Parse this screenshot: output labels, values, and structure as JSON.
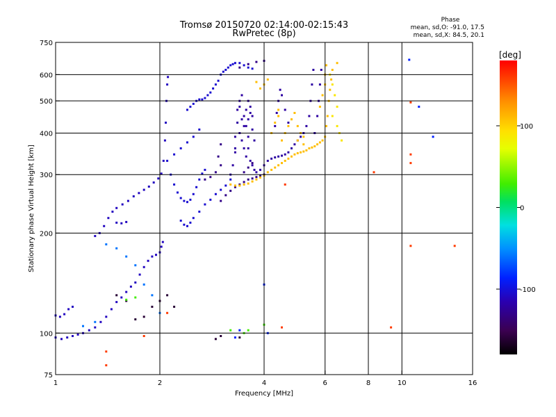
{
  "chart_data": {
    "type": "scatter",
    "title": "Tromsø 20150720 02:14:00-02:15:43",
    "subtitle": "RwPretec (8p)",
    "xlabel": "Frequency [MHz]",
    "ylabel": "Stationary phase Virtual Height [km]",
    "x_scale": "log",
    "y_scale": "log",
    "xlim": [
      1,
      16
    ],
    "ylim": [
      75,
      750
    ],
    "x_ticks": [
      1,
      2,
      4,
      6,
      8,
      10,
      16
    ],
    "y_ticks": [
      75,
      100,
      200,
      300,
      400,
      500,
      600,
      750
    ],
    "x_gridlines": [
      2,
      4,
      6,
      8,
      10
    ],
    "y_gridlines": [
      100,
      200,
      300,
      400,
      500,
      600
    ],
    "grid": true,
    "stats": {
      "heading": "Phase",
      "o_line": "mean, sd,O: -91.0, 17.5",
      "x_line": "mean, sd,X:  84.5, 20.1"
    },
    "colorbar": {
      "label": "[deg]",
      "range": [
        -180,
        180
      ],
      "ticks": [
        100,
        0,
        -100
      ],
      "tick_labels": [
        "100",
        "0",
        "-100"
      ]
    },
    "series": [
      {
        "phase": -110,
        "points": [
          [
            1.0,
            113
          ],
          [
            1.03,
            112
          ],
          [
            1.06,
            114
          ],
          [
            1.09,
            118
          ],
          [
            1.12,
            120
          ],
          [
            1.0,
            97
          ],
          [
            1.04,
            96
          ],
          [
            1.08,
            97
          ],
          [
            1.12,
            98
          ],
          [
            1.16,
            99
          ],
          [
            1.2,
            100
          ],
          [
            1.25,
            102
          ],
          [
            1.3,
            104
          ],
          [
            1.35,
            108
          ],
          [
            1.4,
            112
          ],
          [
            1.45,
            118
          ],
          [
            1.5,
            124
          ],
          [
            1.55,
            128
          ],
          [
            1.6,
            133
          ],
          [
            1.65,
            138
          ],
          [
            1.7,
            142
          ],
          [
            1.75,
            150
          ],
          [
            1.8,
            158
          ],
          [
            1.85,
            165
          ],
          [
            1.9,
            170
          ],
          [
            1.95,
            172
          ],
          [
            2.0,
            175
          ],
          [
            2.02,
            182
          ],
          [
            2.04,
            188
          ],
          [
            1.3,
            196
          ],
          [
            1.34,
            200
          ],
          [
            1.38,
            210
          ],
          [
            1.42,
            222
          ],
          [
            1.46,
            232
          ],
          [
            1.5,
            238
          ],
          [
            1.56,
            244
          ],
          [
            1.62,
            250
          ],
          [
            1.68,
            258
          ],
          [
            1.74,
            264
          ],
          [
            1.8,
            270
          ],
          [
            1.86,
            276
          ],
          [
            1.92,
            284
          ],
          [
            1.98,
            292
          ],
          [
            2.02,
            302
          ],
          [
            2.05,
            330
          ],
          [
            2.07,
            380
          ],
          [
            2.08,
            430
          ],
          [
            2.09,
            500
          ],
          [
            2.1,
            560
          ],
          [
            2.11,
            590
          ],
          [
            1.5,
            215
          ],
          [
            1.55,
            214
          ],
          [
            1.6,
            216
          ]
        ]
      },
      {
        "phase": -105,
        "points": [
          [
            2.1,
            330
          ],
          [
            2.15,
            300
          ],
          [
            2.2,
            280
          ],
          [
            2.25,
            265
          ],
          [
            2.3,
            255
          ],
          [
            2.35,
            250
          ],
          [
            2.4,
            248
          ],
          [
            2.45,
            252
          ],
          [
            2.5,
            262
          ],
          [
            2.55,
            275
          ],
          [
            2.6,
            290
          ],
          [
            2.65,
            302
          ],
          [
            2.7,
            310
          ],
          [
            2.3,
            218
          ],
          [
            2.35,
            212
          ],
          [
            2.4,
            210
          ],
          [
            2.45,
            215
          ],
          [
            2.5,
            222
          ],
          [
            2.6,
            232
          ],
          [
            2.7,
            244
          ],
          [
            2.8,
            252
          ],
          [
            2.9,
            262
          ],
          [
            3.0,
            270
          ],
          [
            3.1,
            278
          ],
          [
            3.2,
            290
          ],
          [
            2.2,
            345
          ],
          [
            2.3,
            360
          ],
          [
            2.4,
            375
          ],
          [
            2.5,
            390
          ],
          [
            2.6,
            410
          ],
          [
            2.4,
            470
          ],
          [
            2.45,
            480
          ],
          [
            2.5,
            490
          ],
          [
            2.55,
            500
          ],
          [
            2.6,
            505
          ],
          [
            2.65,
            505
          ],
          [
            2.7,
            510
          ],
          [
            2.75,
            520
          ],
          [
            2.8,
            530
          ],
          [
            2.85,
            545
          ],
          [
            2.9,
            560
          ],
          [
            2.95,
            575
          ],
          [
            3.0,
            600
          ],
          [
            3.05,
            612
          ],
          [
            3.1,
            620
          ],
          [
            3.15,
            630
          ],
          [
            3.2,
            640
          ],
          [
            3.25,
            645
          ],
          [
            3.3,
            650
          ],
          [
            3.4,
            650
          ],
          [
            3.5,
            640
          ],
          [
            3.6,
            630
          ],
          [
            3.7,
            625
          ]
        ]
      },
      {
        "phase": -120,
        "points": [
          [
            3.2,
            300
          ],
          [
            3.25,
            320
          ],
          [
            3.3,
            350
          ],
          [
            3.3,
            390
          ],
          [
            3.35,
            430
          ],
          [
            3.35,
            470
          ],
          [
            3.4,
            500
          ],
          [
            3.45,
            520
          ],
          [
            3.4,
            400
          ],
          [
            3.45,
            380
          ],
          [
            3.5,
            360
          ],
          [
            3.55,
            340
          ],
          [
            3.5,
            450
          ],
          [
            3.55,
            420
          ],
          [
            3.6,
            390
          ],
          [
            3.6,
            440
          ],
          [
            3.65,
            460
          ],
          [
            3.3,
            360
          ],
          [
            3.5,
            420
          ],
          [
            3.55,
            470
          ],
          [
            3.6,
            500
          ],
          [
            3.65,
            480
          ],
          [
            3.7,
            450
          ],
          [
            3.7,
            410
          ],
          [
            3.75,
            380
          ],
          [
            3.4,
            480
          ],
          [
            3.45,
            440
          ],
          [
            3.6,
            360
          ],
          [
            3.65,
            330
          ],
          [
            3.7,
            320
          ],
          [
            3.75,
            310
          ],
          [
            3.8,
            305
          ],
          [
            3.9,
            310
          ],
          [
            4.0,
            320
          ],
          [
            4.1,
            330
          ],
          [
            4.2,
            335
          ],
          [
            4.3,
            338
          ],
          [
            4.4,
            340
          ],
          [
            4.5,
            342
          ],
          [
            4.6,
            345
          ],
          [
            4.7,
            350
          ],
          [
            4.8,
            360
          ],
          [
            4.9,
            370
          ],
          [
            5.0,
            380
          ],
          [
            5.1,
            390
          ],
          [
            5.2,
            400
          ],
          [
            5.3,
            420
          ],
          [
            5.4,
            450
          ],
          [
            5.45,
            500
          ],
          [
            5.5,
            560
          ],
          [
            5.55,
            620
          ],
          [
            4.3,
            420
          ],
          [
            4.35,
            460
          ],
          [
            4.4,
            500
          ],
          [
            4.45,
            540
          ],
          [
            4.5,
            520
          ],
          [
            4.6,
            470
          ],
          [
            4.7,
            430
          ],
          [
            5.6,
            400
          ],
          [
            5.7,
            450
          ],
          [
            5.75,
            500
          ],
          [
            5.8,
            560
          ],
          [
            5.85,
            620
          ]
        ]
      },
      {
        "phase": -130,
        "points": [
          [
            3.0,
            250
          ],
          [
            3.1,
            260
          ],
          [
            3.2,
            268
          ],
          [
            3.3,
            275
          ],
          [
            3.4,
            280
          ],
          [
            3.5,
            285
          ],
          [
            3.6,
            290
          ],
          [
            3.7,
            292
          ],
          [
            3.8,
            295
          ],
          [
            3.9,
            298
          ],
          [
            4.0,
            300
          ],
          [
            3.5,
            305
          ],
          [
            3.6,
            315
          ],
          [
            3.7,
            325
          ],
          [
            3.0,
            320
          ],
          [
            2.95,
            340
          ],
          [
            3.0,
            370
          ],
          [
            2.9,
            305
          ],
          [
            2.8,
            295
          ],
          [
            2.7,
            290
          ],
          [
            3.4,
            630
          ],
          [
            3.6,
            645
          ],
          [
            3.8,
            655
          ],
          [
            4.0,
            660
          ]
        ]
      },
      {
        "phase": 110,
        "points": [
          [
            3.2,
            280
          ],
          [
            3.3,
            278
          ],
          [
            3.4,
            278
          ],
          [
            3.5,
            280
          ],
          [
            3.6,
            282
          ],
          [
            3.7,
            286
          ],
          [
            3.8,
            290
          ],
          [
            3.9,
            294
          ],
          [
            4.0,
            298
          ],
          [
            4.1,
            305
          ],
          [
            4.2,
            310
          ],
          [
            4.3,
            315
          ],
          [
            4.4,
            320
          ],
          [
            4.5,
            325
          ],
          [
            4.6,
            330
          ],
          [
            4.7,
            335
          ],
          [
            4.8,
            340
          ],
          [
            4.9,
            345
          ],
          [
            5.0,
            348
          ],
          [
            5.1,
            350
          ],
          [
            5.2,
            352
          ],
          [
            5.3,
            355
          ],
          [
            5.4,
            360
          ],
          [
            5.5,
            362
          ],
          [
            5.6,
            365
          ],
          [
            5.7,
            370
          ],
          [
            5.8,
            375
          ],
          [
            5.9,
            380
          ],
          [
            6.0,
            390
          ],
          [
            6.05,
            420
          ],
          [
            6.1,
            450
          ],
          [
            6.15,
            500
          ],
          [
            6.2,
            540
          ],
          [
            6.25,
            580
          ],
          [
            6.3,
            620
          ],
          [
            4.5,
            380
          ],
          [
            4.6,
            400
          ],
          [
            4.7,
            420
          ],
          [
            4.8,
            440
          ],
          [
            4.9,
            460
          ],
          [
            5.0,
            420
          ],
          [
            5.1,
            400
          ],
          [
            5.2,
            390
          ],
          [
            4.2,
            400
          ],
          [
            4.3,
            430
          ],
          [
            4.4,
            450
          ],
          [
            4.4,
            470
          ],
          [
            5.8,
            480
          ],
          [
            5.9,
            520
          ],
          [
            6.0,
            560
          ],
          [
            6.0,
            600
          ],
          [
            6.05,
            640
          ],
          [
            6.5,
            650
          ],
          [
            5.0,
            380
          ],
          [
            5.2,
            370
          ],
          [
            4.0,
            560
          ],
          [
            4.1,
            580
          ],
          [
            3.8,
            570
          ],
          [
            3.9,
            545
          ]
        ]
      },
      {
        "phase": 90,
        "points": [
          [
            6.2,
            600
          ],
          [
            6.3,
            560
          ],
          [
            6.4,
            520
          ],
          [
            6.5,
            480
          ],
          [
            6.3,
            450
          ],
          [
            6.5,
            420
          ],
          [
            6.6,
            400
          ],
          [
            6.7,
            380
          ]
        ]
      },
      {
        "phase": -60,
        "points": [
          [
            1.4,
            185
          ],
          [
            1.5,
            180
          ],
          [
            1.6,
            170
          ],
          [
            1.7,
            160
          ],
          [
            1.8,
            140
          ],
          [
            1.9,
            130
          ],
          [
            2.0,
            115
          ],
          [
            1.2,
            105
          ],
          [
            1.3,
            108
          ]
        ]
      },
      {
        "phase": -160,
        "points": [
          [
            1.5,
            130
          ],
          [
            1.6,
            125
          ],
          [
            1.7,
            110
          ],
          [
            1.8,
            112
          ],
          [
            1.9,
            120
          ],
          [
            2.0,
            125
          ],
          [
            2.1,
            130
          ],
          [
            2.2,
            120
          ],
          [
            2.9,
            96
          ],
          [
            3.0,
            98
          ],
          [
            3.4,
            97
          ]
        ]
      },
      {
        "phase": 160,
        "points": [
          [
            1.4,
            88
          ],
          [
            1.8,
            98
          ],
          [
            2.1,
            115
          ],
          [
            4.6,
            280
          ],
          [
            1.4,
            80
          ],
          [
            8.3,
            305
          ],
          [
            9.3,
            104
          ],
          [
            10.6,
            325
          ],
          [
            10.6,
            183
          ],
          [
            14.2,
            183
          ],
          [
            10.6,
            495
          ],
          [
            10.6,
            345
          ],
          [
            4.5,
            104
          ]
        ]
      },
      {
        "phase": 30,
        "points": [
          [
            3.6,
            102
          ],
          [
            3.5,
            100
          ],
          [
            4.0,
            106
          ],
          [
            1.6,
            126
          ],
          [
            1.7,
            128
          ],
          [
            3.2,
            102
          ]
        ]
      },
      {
        "phase": -90,
        "points": [
          [
            11.2,
            480
          ],
          [
            12.3,
            390
          ],
          [
            10.5,
            665
          ],
          [
            4.0,
            140
          ],
          [
            4.1,
            100
          ],
          [
            3.3,
            97
          ],
          [
            3.4,
            102
          ]
        ]
      }
    ]
  }
}
